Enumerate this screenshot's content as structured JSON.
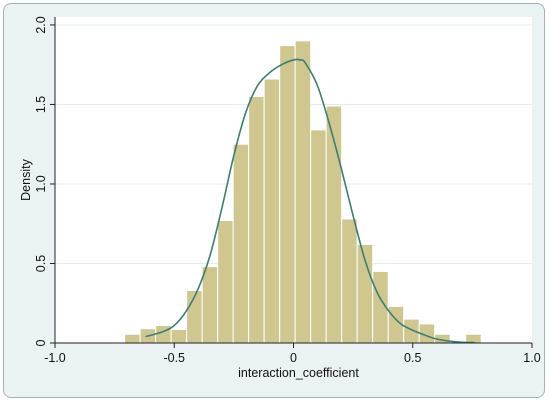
{
  "chart_data": {
    "type": "bar",
    "title": "",
    "xlabel": "interaction_coefficient",
    "ylabel": "Density",
    "xlim": [
      -1.0,
      1.0
    ],
    "ylim": [
      0,
      2.05
    ],
    "x_ticks": [
      -1.0,
      -0.5,
      0,
      0.5,
      1.0
    ],
    "x_tick_labels": [
      "-1.0",
      "-0.5",
      "0",
      "0.5",
      "1.0"
    ],
    "y_ticks": [
      0,
      0.5,
      1.0,
      1.5,
      2.0
    ],
    "y_tick_labels": [
      "0",
      "0.5",
      "1.0",
      "1.5",
      "2.0"
    ],
    "grid": "horizontal",
    "colors": {
      "bar_fill": "#cfc690",
      "bar_edge": "#ffffff",
      "density_line": "#3b7f72",
      "plot_background": "#ffffff",
      "frame_background": "#eaf2f3",
      "grid": "#e4ecec"
    },
    "histogram": {
      "bin_width": 0.0725,
      "bins": [
        {
          "x0": -0.708,
          "x1": -0.643,
          "density": 0.055
        },
        {
          "x0": -0.643,
          "x1": -0.578,
          "density": 0.09
        },
        {
          "x0": -0.578,
          "x1": -0.513,
          "density": 0.11
        },
        {
          "x0": -0.513,
          "x1": -0.448,
          "density": 0.085
        },
        {
          "x0": -0.448,
          "x1": -0.383,
          "density": 0.33
        },
        {
          "x0": -0.383,
          "x1": -0.318,
          "density": 0.48
        },
        {
          "x0": -0.318,
          "x1": -0.253,
          "density": 0.77
        },
        {
          "x0": -0.253,
          "x1": -0.188,
          "density": 1.25
        },
        {
          "x0": -0.188,
          "x1": -0.123,
          "density": 1.55
        },
        {
          "x0": -0.123,
          "x1": -0.058,
          "density": 1.66
        },
        {
          "x0": -0.058,
          "x1": 0.007,
          "density": 1.87
        },
        {
          "x0": 0.007,
          "x1": 0.072,
          "density": 1.9
        },
        {
          "x0": 0.072,
          "x1": 0.137,
          "density": 1.34
        },
        {
          "x0": 0.137,
          "x1": 0.202,
          "density": 1.49
        },
        {
          "x0": 0.202,
          "x1": 0.267,
          "density": 0.78
        },
        {
          "x0": 0.267,
          "x1": 0.332,
          "density": 0.62
        },
        {
          "x0": 0.332,
          "x1": 0.397,
          "density": 0.45
        },
        {
          "x0": 0.397,
          "x1": 0.462,
          "density": 0.23
        },
        {
          "x0": 0.462,
          "x1": 0.527,
          "density": 0.15
        },
        {
          "x0": 0.527,
          "x1": 0.592,
          "density": 0.12
        },
        {
          "x0": 0.592,
          "x1": 0.657,
          "density": 0.055
        },
        {
          "x0": 0.657,
          "x1": 0.722,
          "density": 0.0
        },
        {
          "x0": 0.722,
          "x1": 0.787,
          "density": 0.055
        }
      ]
    },
    "density_curve": {
      "x": [
        -0.62,
        -0.55,
        -0.5,
        -0.45,
        -0.4,
        -0.35,
        -0.3,
        -0.25,
        -0.2,
        -0.15,
        -0.1,
        -0.05,
        0.0,
        0.03,
        0.05,
        0.1,
        0.15,
        0.2,
        0.25,
        0.3,
        0.35,
        0.4,
        0.45,
        0.5,
        0.55,
        0.6,
        0.65,
        0.7,
        0.76
      ],
      "y": [
        0.04,
        0.07,
        0.11,
        0.2,
        0.34,
        0.55,
        0.85,
        1.18,
        1.45,
        1.62,
        1.7,
        1.75,
        1.78,
        1.78,
        1.76,
        1.62,
        1.38,
        1.1,
        0.8,
        0.52,
        0.32,
        0.2,
        0.12,
        0.08,
        0.05,
        0.025,
        0.012,
        0.005,
        0.002
      ]
    }
  }
}
